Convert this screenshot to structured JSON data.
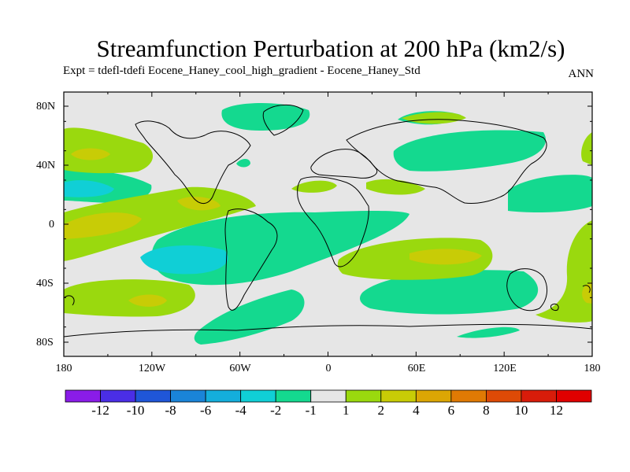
{
  "title": "Streamfunction Perturbation at 200 hPa (km2/s)",
  "subtitle": "Expt = tdefl-tdefi  Eocene_Haney_cool_high_gradient - Eocene_Haney_Std",
  "season": "ANN",
  "lat_labels": [
    "80N",
    "40N",
    "0",
    "40S",
    "80S"
  ],
  "lon_labels": [
    "180",
    "120W",
    "60W",
    "0",
    "60E",
    "120E",
    "180"
  ],
  "colorbar": {
    "labels": [
      "-12",
      "-10",
      "-8",
      "-6",
      "-4",
      "-2",
      "-1",
      "1",
      "2",
      "4",
      "6",
      "8",
      "10",
      "12"
    ],
    "colors": [
      "#8a1ce8",
      "#4a2ee6",
      "#1f56d8",
      "#1a84d8",
      "#14aedc",
      "#10cfd6",
      "#14d98f",
      "#e6e6e6",
      "#9ad90e",
      "#c8cc06",
      "#dca604",
      "#e07a04",
      "#de4a06",
      "#d81c0a",
      "#e00000"
    ]
  },
  "map": {
    "land_outline_color": "#000000",
    "neutral_color": "#e6e6e6",
    "palette": {
      "teal": "#14d98f",
      "cyan": "#10cfd6",
      "lime": "#9ad90e",
      "olive": "#c8cc06"
    }
  }
}
